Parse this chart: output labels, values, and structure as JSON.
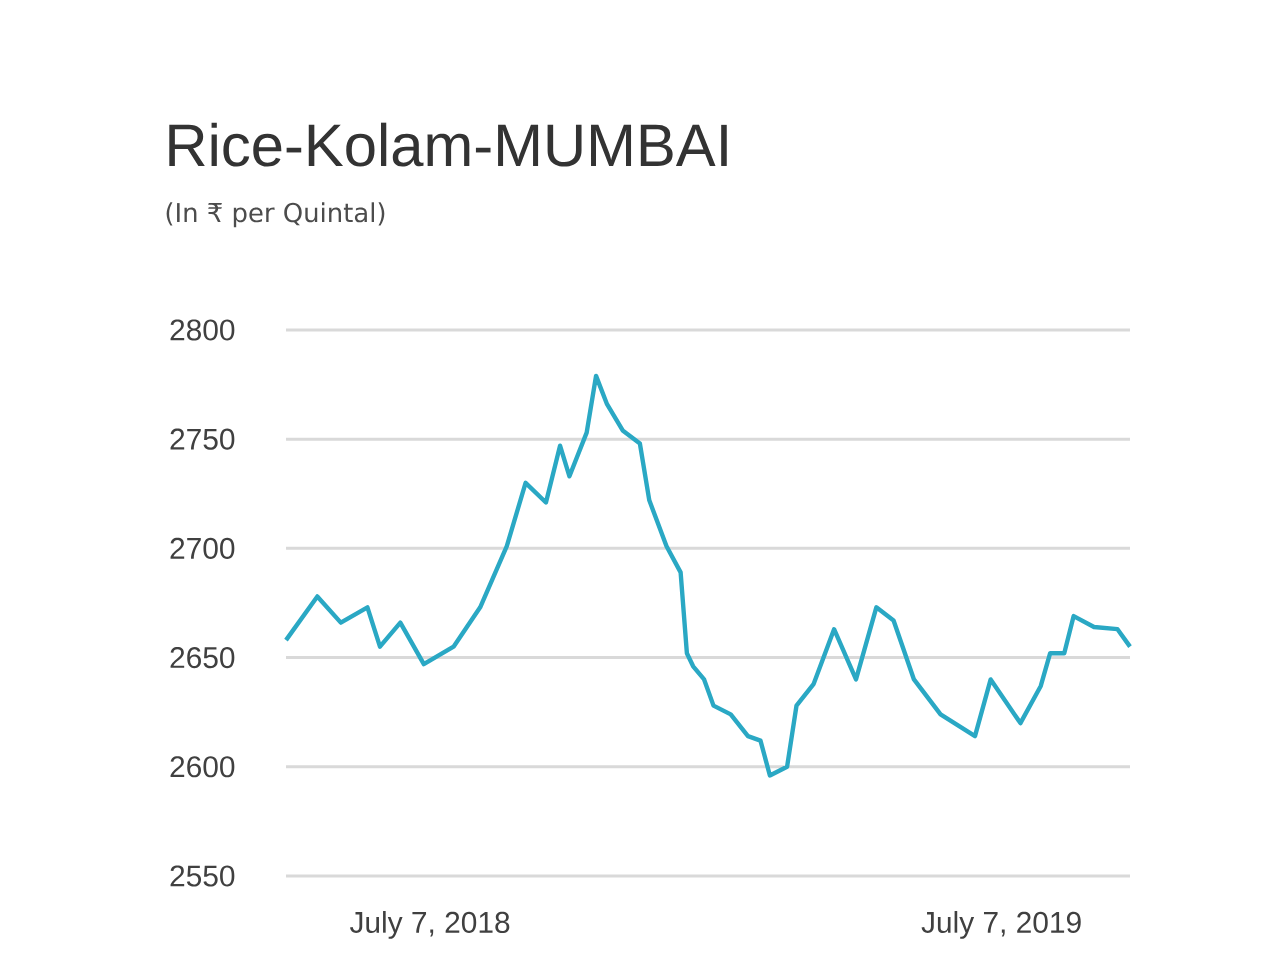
{
  "chart_data": {
    "type": "line",
    "title": "Rice-Kolam-MUMBAI",
    "subtitle": "(In ₹ per Quintal)",
    "x": [
      "2018-04-06",
      "2018-04-26",
      "2018-05-11",
      "2018-05-28",
      "2018-06-05",
      "2018-06-18",
      "2018-07-03",
      "2018-07-22",
      "2018-08-08",
      "2018-08-25",
      "2018-09-06",
      "2018-09-19",
      "2018-09-28",
      "2018-10-04",
      "2018-10-15",
      "2018-10-21",
      "2018-10-28",
      "2018-11-07",
      "2018-11-18",
      "2018-11-24",
      "2018-12-05",
      "2018-12-14",
      "2018-12-18",
      "2018-12-22",
      "2018-12-29",
      "2019-01-04",
      "2019-01-15",
      "2019-01-26",
      "2019-02-03",
      "2019-02-09",
      "2019-02-20",
      "2019-02-26",
      "2019-03-09",
      "2019-03-22",
      "2019-04-05",
      "2019-04-18",
      "2019-04-29",
      "2019-05-12",
      "2019-05-29",
      "2019-06-20",
      "2019-06-30",
      "2019-07-19",
      "2019-08-01",
      "2019-08-07",
      "2019-08-16",
      "2019-08-22",
      "2019-09-04",
      "2019-09-19",
      "2019-09-27"
    ],
    "series": [
      {
        "color": "#2aa8c4",
        "values": [
          2658,
          2678,
          2666,
          2673,
          2655,
          2666,
          2647,
          2655,
          2673,
          2701,
          2730,
          2721,
          2747,
          2733,
          2753,
          2779,
          2766,
          2754,
          2748,
          2722,
          2701,
          2689,
          2652,
          2646,
          2640,
          2628,
          2624,
          2614,
          2612,
          2596,
          2600,
          2628,
          2638,
          2663,
          2640,
          2673,
          2667,
          2640,
          2624,
          2614,
          2640,
          2620,
          2637,
          2652,
          2652,
          2669,
          2664,
          2663,
          2655
        ]
      }
    ],
    "xlim": [
      "2018-04-06",
      "2019-09-27"
    ],
    "xticks": [
      {
        "value": "2018-07-07",
        "label": "July 7, 2018"
      },
      {
        "value": "2019-07-07",
        "label": "July 7, 2019"
      }
    ],
    "ylim": [
      2550,
      2800
    ],
    "yticks": [
      2550,
      2600,
      2650,
      2700,
      2750,
      2800
    ],
    "grid": "y",
    "marker": "none",
    "line_style": "solid"
  }
}
